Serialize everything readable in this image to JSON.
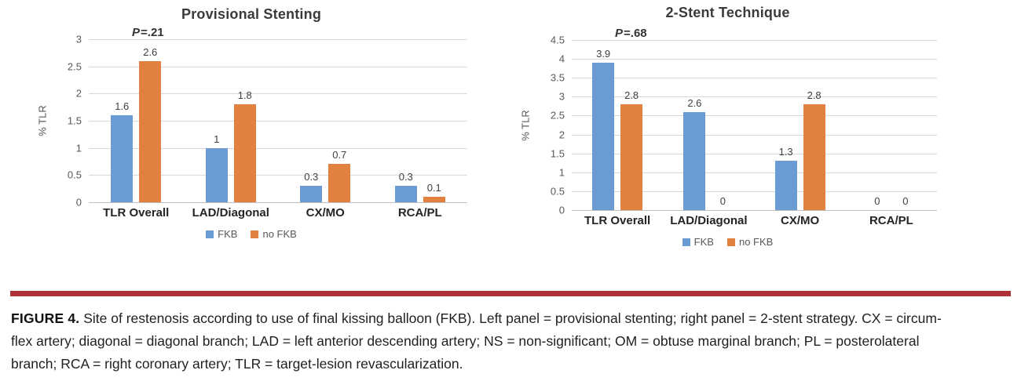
{
  "chart_data": [
    {
      "type": "bar",
      "title": "Provisional Stenting",
      "p_annotation": {
        "italic": "P",
        "rest": "=.21"
      },
      "ylabel": "% TLR",
      "ylim": [
        0,
        3
      ],
      "ytick_step": 0.5,
      "grid": true,
      "legend_position": "bottom",
      "categories": [
        "TLR Overall",
        "LAD/Diagonal",
        "CX/MO",
        "RCA/PL"
      ],
      "series": [
        {
          "name": "FKB",
          "color": "#6A9BD2",
          "values": [
            1.6,
            1,
            0.3,
            0.3
          ]
        },
        {
          "name": "no FKB",
          "color": "#E0813F",
          "values": [
            2.6,
            1.8,
            0.7,
            0.1
          ]
        }
      ]
    },
    {
      "type": "bar",
      "title": "2-Stent Technique",
      "p_annotation": {
        "italic": "P",
        "rest": "=.68"
      },
      "ylabel": "% TLR",
      "ylim": [
        0,
        4.5
      ],
      "ytick_step": 0.5,
      "grid": true,
      "legend_position": "bottom",
      "categories": [
        "TLR Overall",
        "LAD/Diagonal",
        "CX/MO",
        "RCA/PL"
      ],
      "series": [
        {
          "name": "FKB",
          "color": "#6A9BD2",
          "values": [
            3.9,
            2.6,
            1.3,
            0
          ]
        },
        {
          "name": "no FKB",
          "color": "#E0813F",
          "values": [
            2.8,
            0,
            2.8,
            0
          ]
        }
      ]
    }
  ],
  "caption": {
    "label": "FIGURE 4.",
    "lines": [
      "Site of restenosis according to use of final kissing balloon (FKB). Left panel = provisional stenting; right panel = 2-stent strategy. CX = circum-",
      "flex artery; diagonal = diagonal branch; LAD = left anterior descending artery; NS = non-significant; OM = obtuse marginal branch; PL = posterolateral",
      "branch; RCA = right coronary artery; TLR = target-lesion revascularization."
    ],
    "rule_color": "#af3239"
  },
  "colors": {
    "fkb": "#6A9BD2",
    "no_fkb": "#E0813F",
    "gridline": "#d9d9d9"
  }
}
